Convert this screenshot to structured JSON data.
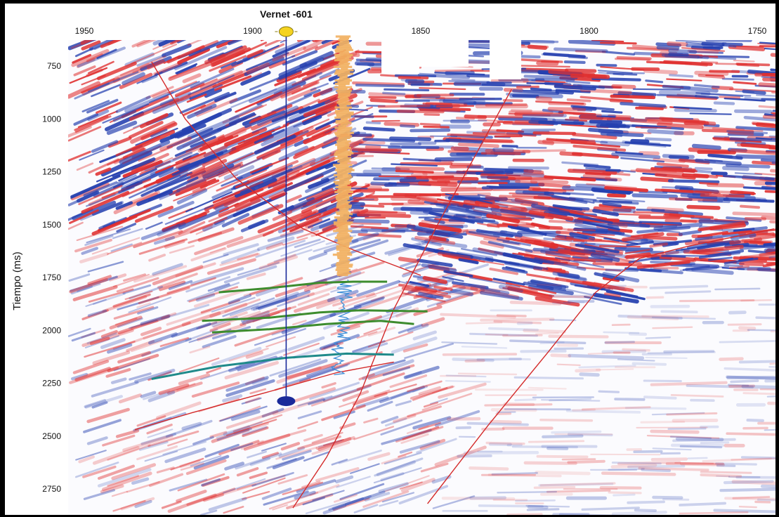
{
  "chart_data": {
    "type": "seismic-section",
    "title": "",
    "well": {
      "name": "Vernet -601",
      "trace": 1890,
      "top_ms": 600,
      "bottom_ms": 2335
    },
    "xlabel": "",
    "ylabel": "Tiempo (ms)",
    "x_ticks": [
      "1950",
      "1900",
      "1850",
      "1800",
      "1750"
    ],
    "x_tick_values": [
      1950,
      1900,
      1850,
      1800,
      1750
    ],
    "y_ticks": [
      "750",
      "1000",
      "1250",
      "1500",
      "1750",
      "2000",
      "2250",
      "2500",
      "2750"
    ],
    "y_tick_values": [
      750,
      1000,
      1250,
      1500,
      1750,
      2000,
      2250,
      2500,
      2750
    ],
    "xlim": [
      1955,
      1745
    ],
    "ylim": [
      600,
      2830
    ],
    "grid": false,
    "colors": {
      "positive_amplitude": "#e03030",
      "negative_amplitude": "#2540b0",
      "fault": "#d42a2a",
      "horizon_green": "#3d8c2e",
      "horizon_teal": "#1f8a8a",
      "well_path": "#1a2a9a",
      "well_log_orange": "#f2b060",
      "well_log_blue": "#3f8fd8",
      "well_symbol": "#f5d320"
    },
    "faults": [
      {
        "name": "fault-1",
        "points": [
          [
            1930,
            730
          ],
          [
            1920,
            1000
          ],
          [
            1905,
            1280
          ],
          [
            1885,
            1520
          ],
          [
            1870,
            1620
          ],
          [
            1860,
            1680
          ],
          [
            1850,
            1740
          ]
        ]
      },
      {
        "name": "fault-2",
        "points": [
          [
            1823,
            860
          ],
          [
            1833,
            1150
          ],
          [
            1845,
            1500
          ],
          [
            1858,
            1900
          ],
          [
            1868,
            2300
          ],
          [
            1878,
            2600
          ],
          [
            1888,
            2840
          ]
        ]
      },
      {
        "name": "fault-3",
        "points": [
          [
            1745,
            1520
          ],
          [
            1770,
            1600
          ],
          [
            1785,
            1660
          ],
          [
            1798,
            1820
          ],
          [
            1812,
            2100
          ],
          [
            1830,
            2450
          ],
          [
            1848,
            2820
          ]
        ]
      },
      {
        "name": "fault-4",
        "points": [
          [
            1935,
            2470
          ],
          [
            1918,
            2390
          ],
          [
            1895,
            2290
          ],
          [
            1875,
            2200
          ],
          [
            1858,
            2150
          ]
        ]
      }
    ],
    "horizons": [
      {
        "name": "horizon-1",
        "color": "green",
        "points": [
          [
            1910,
            1820
          ],
          [
            1895,
            1800
          ],
          [
            1880,
            1775
          ],
          [
            1870,
            1770
          ],
          [
            1860,
            1770
          ]
        ]
      },
      {
        "name": "horizon-2",
        "color": "green",
        "points": [
          [
            1915,
            1955
          ],
          [
            1895,
            1940
          ],
          [
            1880,
            1915
          ],
          [
            1868,
            1905
          ],
          [
            1848,
            1910
          ]
        ]
      },
      {
        "name": "horizon-3",
        "color": "green",
        "points": [
          [
            1912,
            2010
          ],
          [
            1895,
            1995
          ],
          [
            1878,
            1970
          ],
          [
            1862,
            1955
          ],
          [
            1852,
            1970
          ]
        ]
      },
      {
        "name": "horizon-4",
        "color": "teal",
        "points": [
          [
            1930,
            2230
          ],
          [
            1910,
            2170
          ],
          [
            1890,
            2130
          ],
          [
            1872,
            2110
          ],
          [
            1858,
            2115
          ]
        ]
      }
    ]
  }
}
